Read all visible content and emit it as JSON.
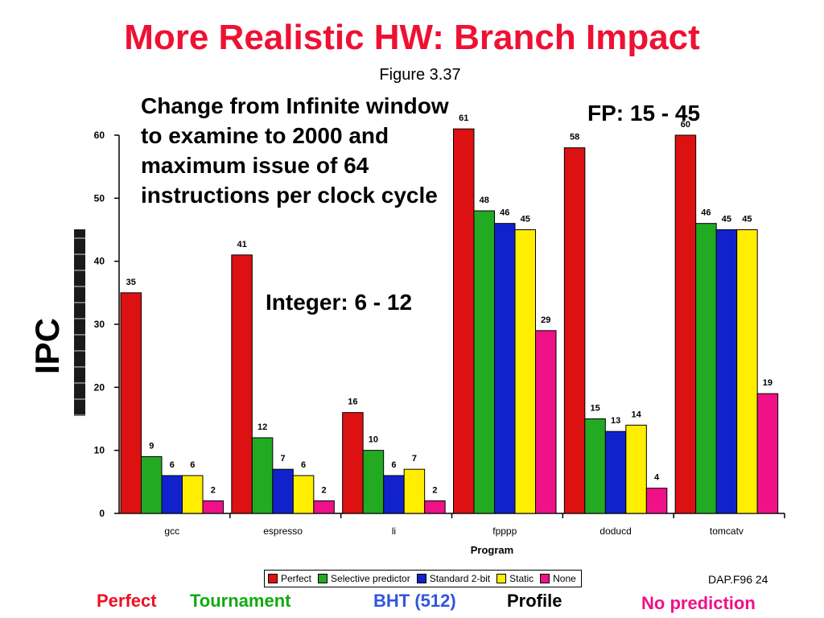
{
  "title": "More Realistic HW: Branch Impact",
  "figure_ref": "Figure 3.37",
  "callouts": {
    "change": "Change from Infinite window to examine to 2000 and maximum issue of 64 instructions per clock cycle",
    "fp": "FP: 15 - 45",
    "integer": "Integer: 6 - 12"
  },
  "ipc_label": "IPC",
  "slide_id": "DAP.F96  24",
  "footer": {
    "perfect": "Perfect",
    "tournament": "Tournament",
    "bht": "BHT (512)",
    "profile": "Profile",
    "no_prediction": "No prediction"
  },
  "colors": {
    "title": "#ee1133",
    "perfect": "#dd1111",
    "selective": "#22aa22",
    "standard2bit": "#1122cc",
    "static": "#ffee00",
    "none": "#ee1188"
  },
  "chart_data": {
    "type": "bar",
    "categories": [
      "gcc",
      "espresso",
      "li",
      "fpppp",
      "doducd",
      "tomcatv"
    ],
    "series": [
      {
        "name": "Perfect",
        "values": [
          35,
          41,
          16,
          61,
          58,
          60
        ],
        "labels": [
          "35",
          "41",
          "16",
          "61",
          "58",
          "60"
        ]
      },
      {
        "name": "Selective predictor",
        "values": [
          9,
          12,
          10,
          48,
          15,
          46
        ],
        "labels": [
          "9",
          "12",
          "10",
          "48",
          "15",
          "46"
        ]
      },
      {
        "name": "Standard 2-bit",
        "values": [
          6,
          7,
          6,
          46,
          13,
          45
        ],
        "labels": [
          "6",
          "7",
          "6",
          "46",
          "13",
          "45"
        ]
      },
      {
        "name": "Static",
        "values": [
          6,
          6,
          7,
          45,
          14,
          45
        ],
        "labels": [
          "6",
          "6",
          "7",
          "45",
          "14",
          "45"
        ]
      },
      {
        "name": "None",
        "values": [
          2,
          2,
          2,
          29,
          4,
          19
        ],
        "labels": [
          "2",
          "2",
          "2",
          "29",
          "4",
          "19"
        ]
      }
    ],
    "xlabel": "Program",
    "ylabel": "",
    "ylim": [
      0,
      60
    ],
    "yticks": [
      0,
      10,
      20,
      30,
      40,
      50,
      60
    ],
    "legend": "bottom"
  }
}
